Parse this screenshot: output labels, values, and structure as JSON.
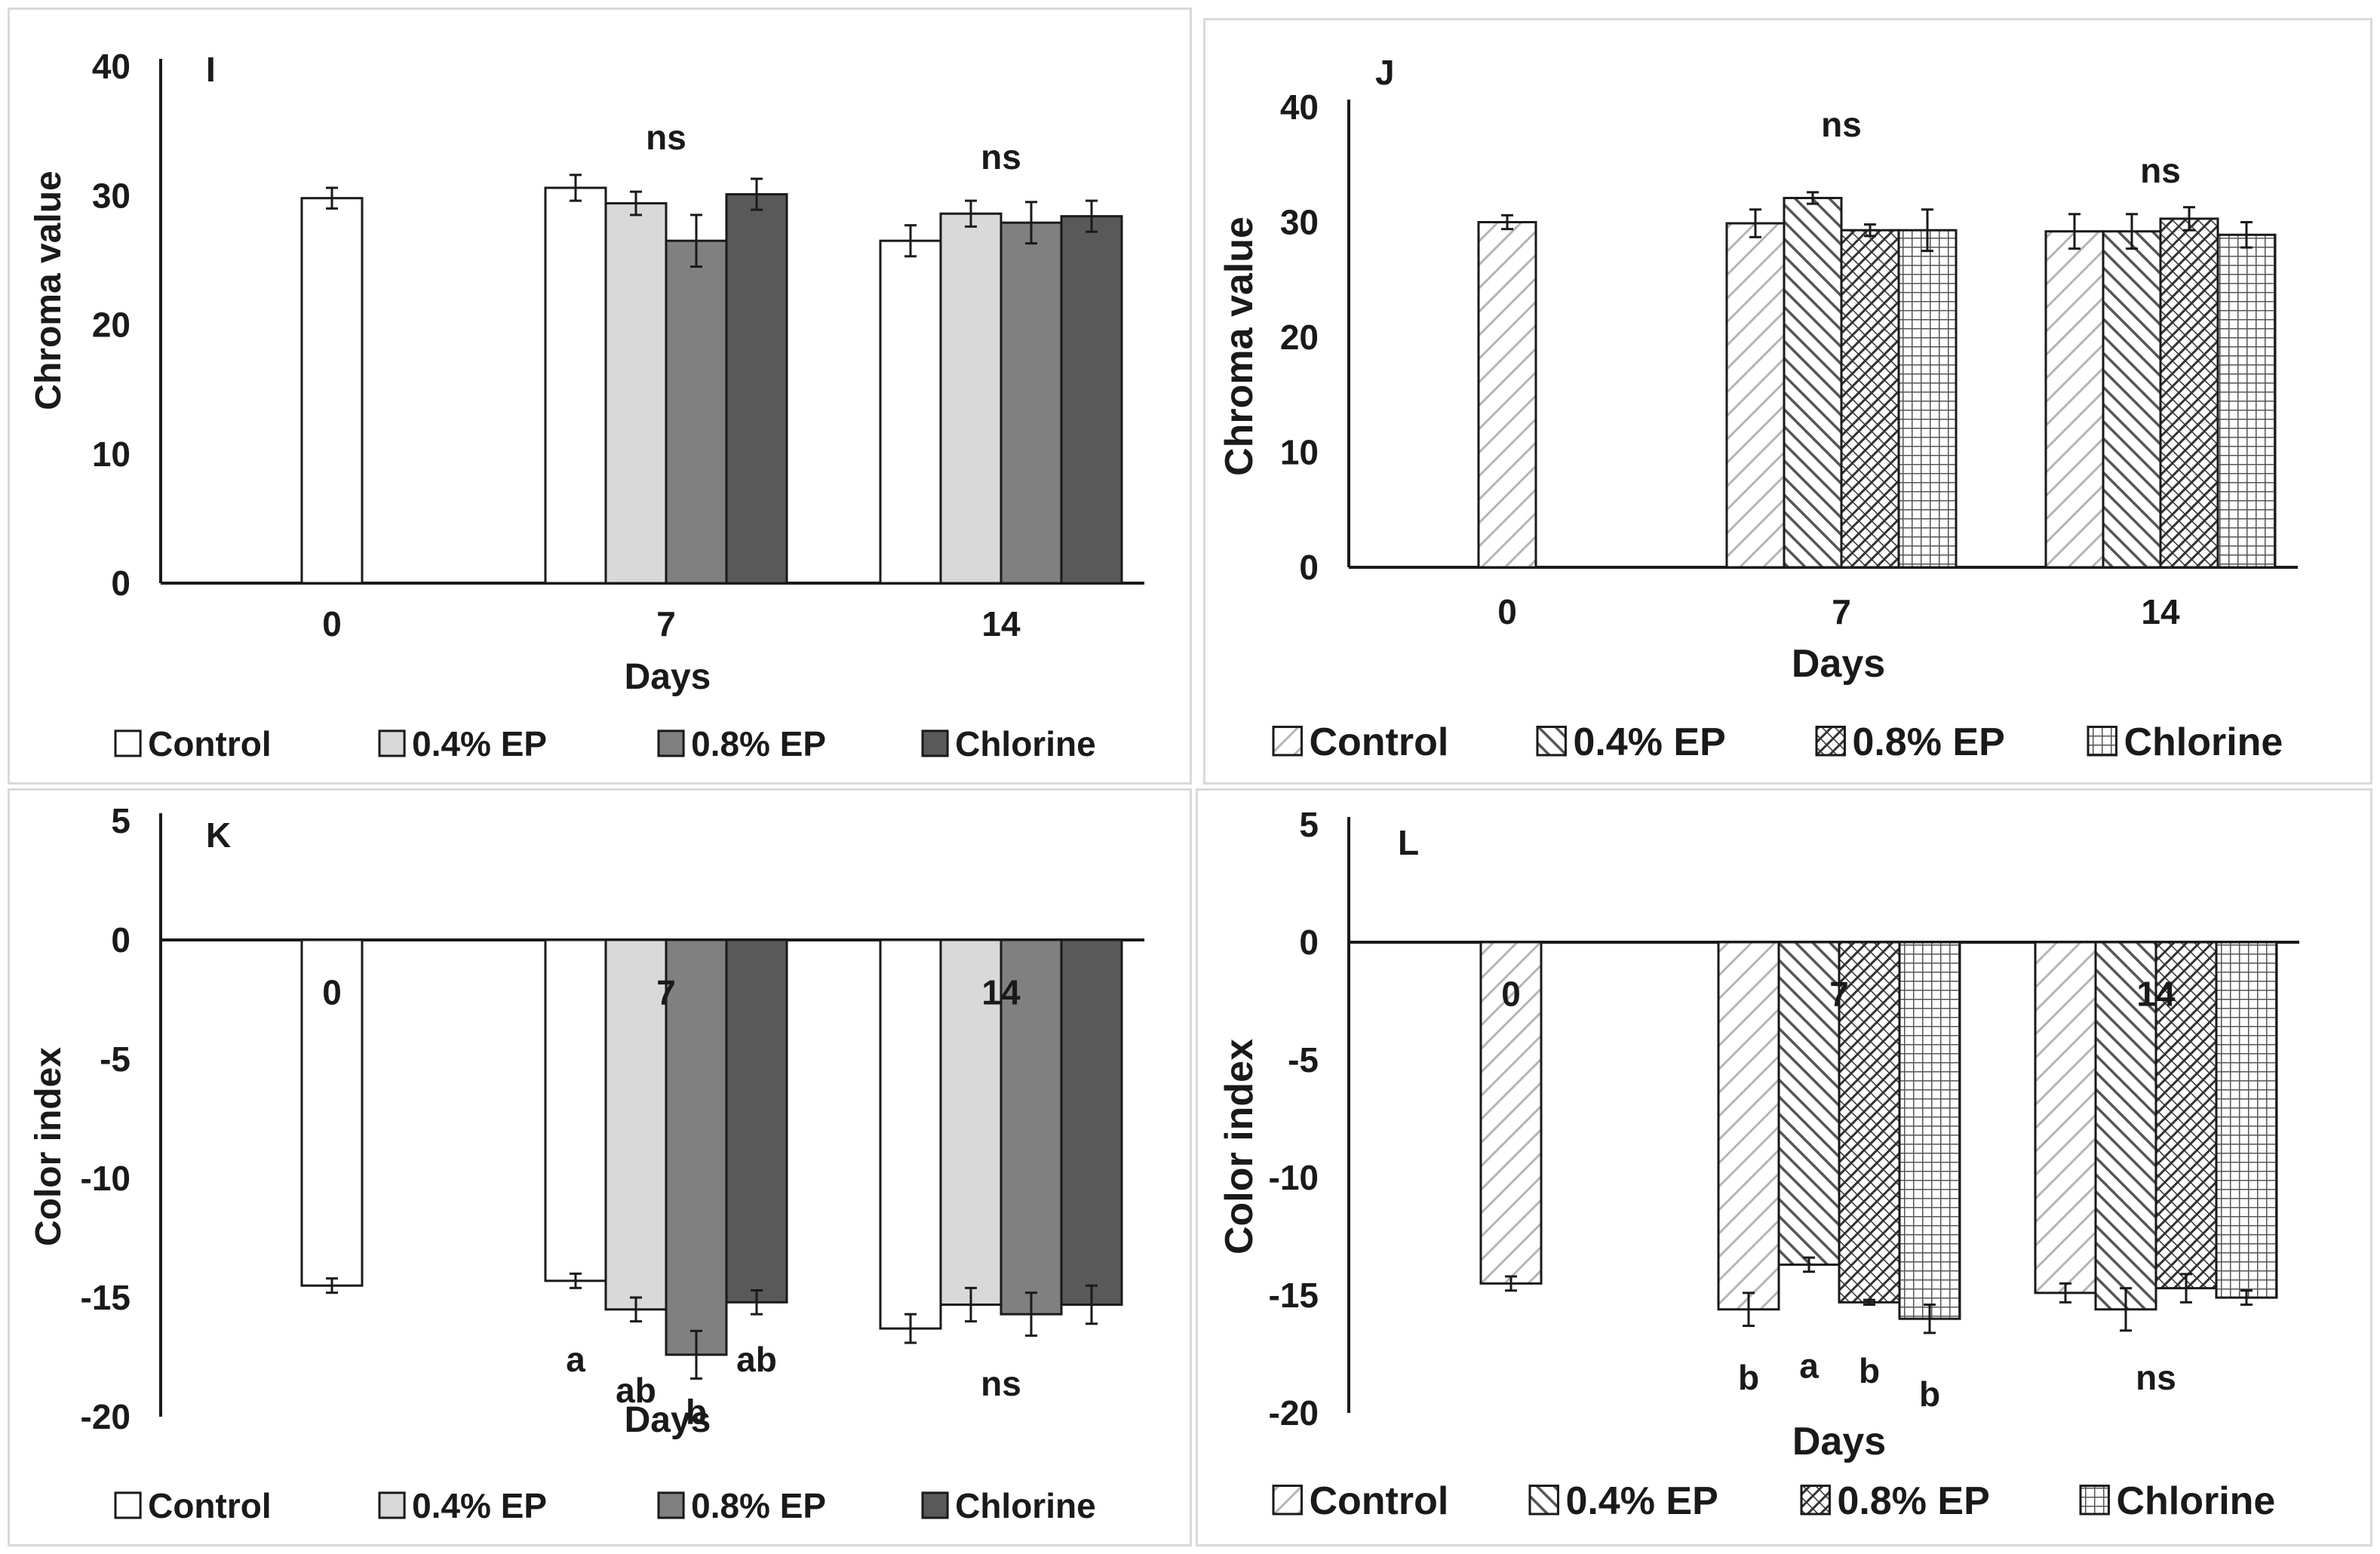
{
  "colors": {
    "control": "#ffffff",
    "ep04": "#d9d9d9",
    "ep08": "#808080",
    "chlorine": "#595959",
    "stroke": "#1a1a1a",
    "hatch": "#555555"
  },
  "chart_data": [
    {
      "type": "bar",
      "panel_label": "I",
      "style": "solid",
      "ylabel": "Chroma value",
      "xlabel": "Days",
      "ylim": [
        0,
        40
      ],
      "yticks": [
        0,
        10,
        20,
        30,
        40
      ],
      "categories": [
        "0",
        "7",
        "14"
      ],
      "series": [
        {
          "name": "Control",
          "values": [
            29.8,
            30.6,
            26.5
          ],
          "errors": [
            0.8,
            1.0,
            1.2
          ]
        },
        {
          "name": "0.4% EP",
          "values": [
            null,
            29.4,
            28.6
          ],
          "errors": [
            null,
            0.9,
            1.0
          ]
        },
        {
          "name": "0.8% EP",
          "values": [
            null,
            26.5,
            27.9
          ],
          "errors": [
            null,
            2.0,
            1.6
          ]
        },
        {
          "name": "Chlorine",
          "values": [
            null,
            30.1,
            28.4
          ],
          "errors": [
            null,
            1.2,
            1.2
          ]
        }
      ],
      "annotations": [
        {
          "text": "ns",
          "category": "7",
          "y": 34.5
        },
        {
          "text": "ns",
          "category": "14",
          "y": 33
        }
      ],
      "legend": [
        "Control",
        "0.4% EP",
        "0.8% EP",
        "Chlorine"
      ]
    },
    {
      "type": "bar",
      "panel_label": "J",
      "style": "hatched",
      "ylabel": "Chroma value",
      "xlabel": "Days",
      "ylim": [
        0,
        40
      ],
      "yticks": [
        0,
        10,
        20,
        30,
        40
      ],
      "categories": [
        "0",
        "7",
        "14"
      ],
      "series": [
        {
          "name": "Control",
          "values": [
            30.0,
            29.9,
            29.2
          ],
          "errors": [
            0.6,
            1.2,
            1.5
          ]
        },
        {
          "name": "0.4% EP",
          "values": [
            null,
            32.1,
            29.2
          ],
          "errors": [
            null,
            0.5,
            1.5
          ]
        },
        {
          "name": "0.8% EP",
          "values": [
            null,
            29.3,
            30.3
          ],
          "errors": [
            null,
            0.5,
            1.0
          ]
        },
        {
          "name": "Chlorine",
          "values": [
            null,
            29.3,
            28.9
          ],
          "errors": [
            null,
            1.8,
            1.1
          ]
        }
      ],
      "annotations": [
        {
          "text": "ns",
          "category": "7",
          "y": 38.5
        },
        {
          "text": "ns",
          "category": "14",
          "y": 34.5
        }
      ],
      "legend": [
        "Control",
        "0.4% EP",
        "0.8% EP",
        "Chlorine"
      ]
    },
    {
      "type": "bar",
      "panel_label": "K",
      "style": "solid",
      "ylabel": "Color index",
      "xlabel": "Days",
      "ylim": [
        -20,
        5
      ],
      "yticks": [
        5,
        0,
        -5,
        -10,
        -15,
        -20
      ],
      "categories": [
        "0",
        "7",
        "14"
      ],
      "series": [
        {
          "name": "Control",
          "values": [
            -14.5,
            -14.3,
            -16.3
          ],
          "errors": [
            0.3,
            0.3,
            0.6
          ]
        },
        {
          "name": "0.4% EP",
          "values": [
            null,
            -15.5,
            -15.3
          ],
          "errors": [
            null,
            0.5,
            0.7
          ]
        },
        {
          "name": "0.8% EP",
          "values": [
            null,
            -17.4,
            -15.7
          ],
          "errors": [
            null,
            1.0,
            0.9
          ]
        },
        {
          "name": "Chlorine",
          "values": [
            null,
            -15.2,
            -15.3
          ],
          "errors": [
            null,
            0.5,
            0.8
          ]
        }
      ],
      "annotations": [
        {
          "text": "a",
          "category": "7",
          "series": "Control",
          "y": -17.6
        },
        {
          "text": "ab",
          "category": "7",
          "series": "0.4% EP",
          "y": -18.9
        },
        {
          "text": "b",
          "category": "7",
          "series": "0.8% EP",
          "y": -19.8
        },
        {
          "text": "ab",
          "category": "7",
          "series": "Chlorine",
          "y": -17.6
        },
        {
          "text": "ns",
          "category": "14",
          "y": -18.6
        }
      ],
      "legend": [
        "Control",
        "0.4% EP",
        "0.8% EP",
        "Chlorine"
      ]
    },
    {
      "type": "bar",
      "panel_label": "L",
      "style": "hatched",
      "ylabel": "Color index",
      "xlabel": "Days",
      "ylim": [
        -20,
        5
      ],
      "yticks": [
        5,
        0,
        -5,
        -10,
        -15,
        -20
      ],
      "categories": [
        "0",
        "7",
        "14"
      ],
      "series": [
        {
          "name": "Control",
          "values": [
            -14.5,
            -15.6,
            -14.9
          ],
          "errors": [
            0.3,
            0.7,
            0.4
          ]
        },
        {
          "name": "0.4% EP",
          "values": [
            null,
            -13.7,
            -15.6
          ],
          "errors": [
            null,
            0.3,
            0.9
          ]
        },
        {
          "name": "0.8% EP",
          "values": [
            null,
            -15.3,
            -14.7
          ],
          "errors": [
            null,
            0.1,
            0.6
          ]
        },
        {
          "name": "Chlorine",
          "values": [
            null,
            -16.0,
            -15.1
          ],
          "errors": [
            null,
            0.6,
            0.3
          ]
        }
      ],
      "annotations": [
        {
          "text": "b",
          "category": "7",
          "series": "Control",
          "y": -18.5
        },
        {
          "text": "a",
          "category": "7",
          "series": "0.4% EP",
          "y": -18.0
        },
        {
          "text": "b",
          "category": "7",
          "series": "0.8% EP",
          "y": -18.2
        },
        {
          "text": "b",
          "category": "7",
          "series": "Chlorine",
          "y": -19.2
        },
        {
          "text": "ns",
          "category": "14",
          "y": -18.5
        }
      ],
      "legend": [
        "Control",
        "0.4% EP",
        "0.8% EP",
        "Chlorine"
      ]
    }
  ]
}
